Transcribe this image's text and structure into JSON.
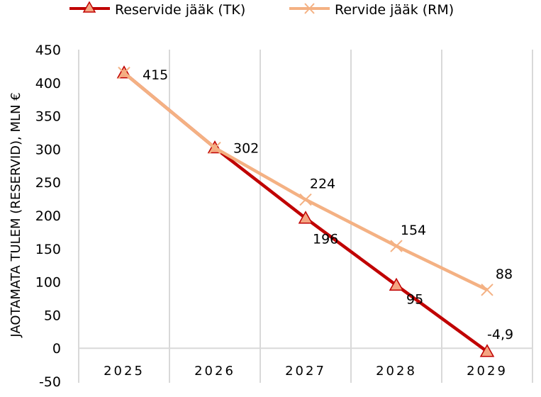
{
  "chart_data": {
    "type": "line",
    "title": "",
    "xlabel": "",
    "ylabel": "JAOTAMATA TULEM (RESERVID), MLN €",
    "categories": [
      "2025",
      "2026",
      "2027",
      "2028",
      "2029"
    ],
    "ylim": [
      -50,
      450
    ],
    "yticks": [
      "450",
      "400",
      "350",
      "300",
      "250",
      "200",
      "150",
      "100",
      "50",
      "0",
      "-50"
    ],
    "legend_position": "top",
    "series": [
      {
        "name": "Reservide jääk (TK)",
        "values": [
          415,
          302,
          196,
          95,
          -4.9
        ],
        "labels": [
          "415",
          "302",
          "196",
          "95",
          "-4,9"
        ],
        "color": "#C00000",
        "marker_fill": "#F4A582",
        "marker": "triangle"
      },
      {
        "name": "Rervide jääk (RM)",
        "values": [
          415,
          302,
          224,
          154,
          88
        ],
        "labels": [
          "",
          "",
          "224",
          "154",
          "88"
        ],
        "color": "#F4B183",
        "marker": "x"
      }
    ]
  }
}
